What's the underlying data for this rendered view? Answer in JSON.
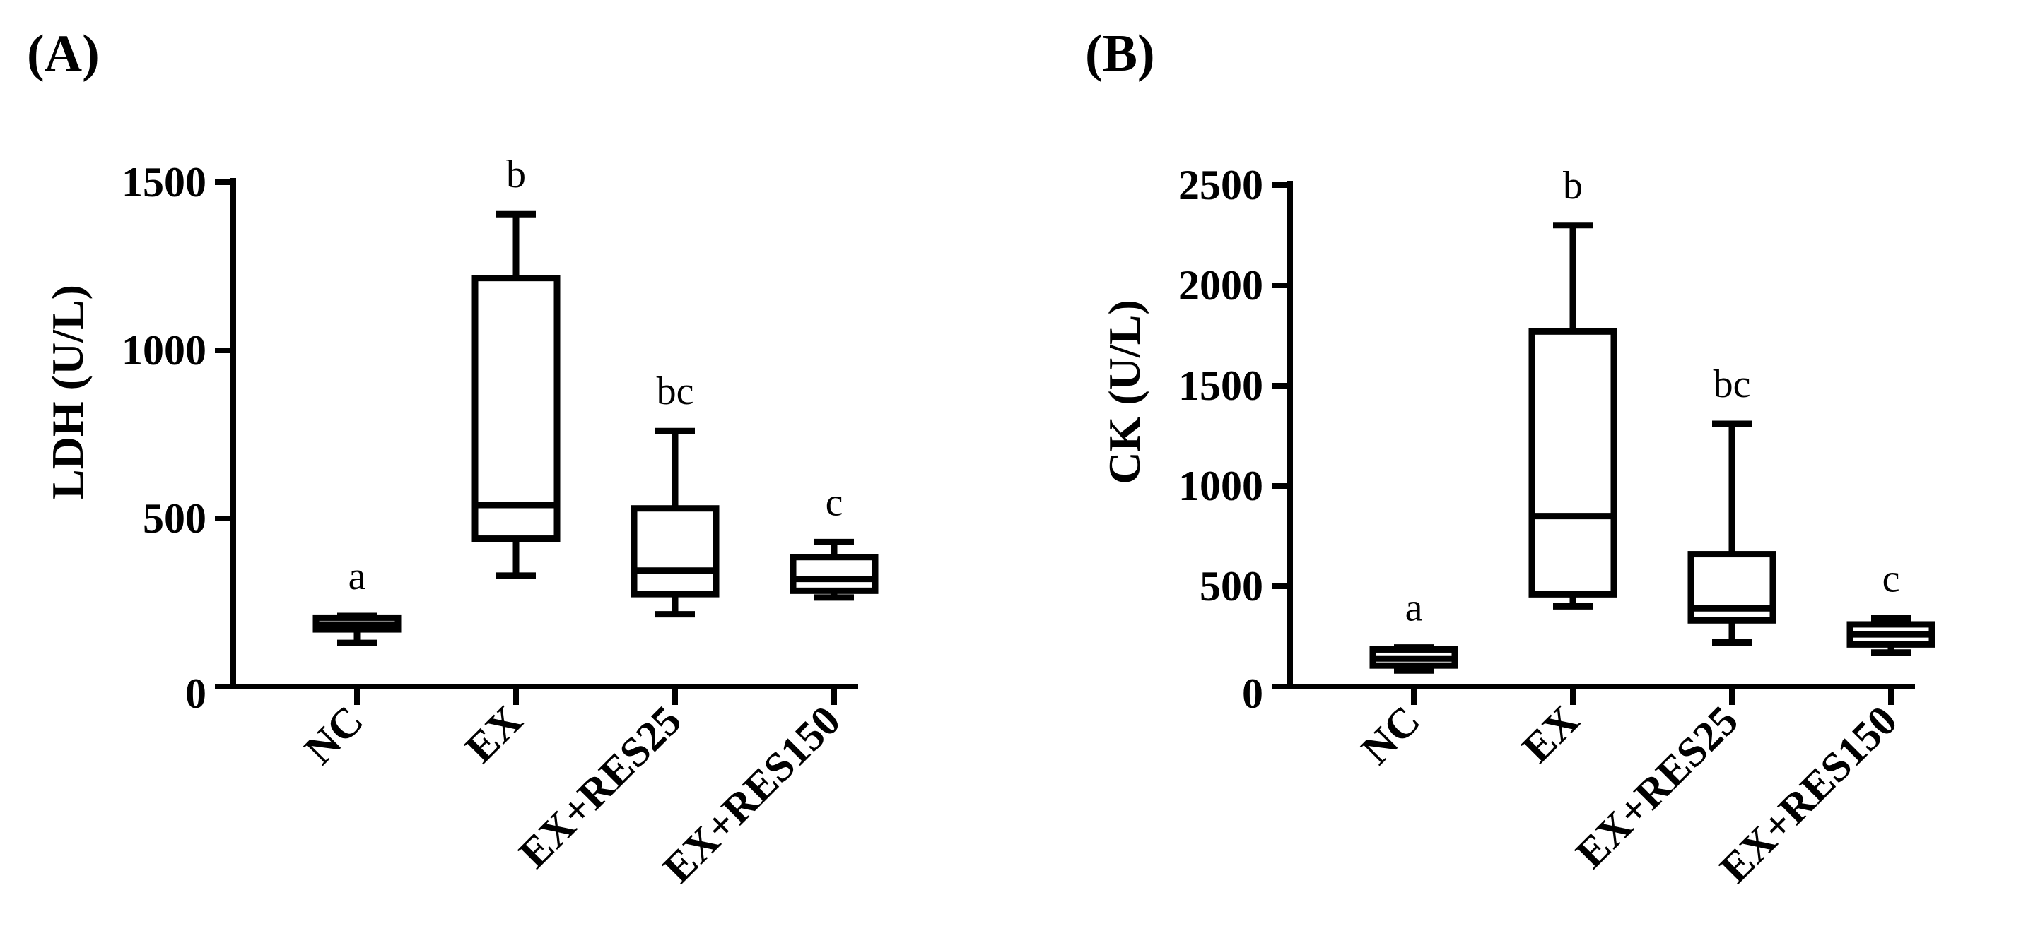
{
  "chart_data": [
    {
      "type": "box",
      "panel_label": "(A)",
      "ylabel": "LDH (U/L)",
      "ylim": [
        0,
        1500
      ],
      "yticks": [
        0,
        500,
        1000,
        1500
      ],
      "categories": [
        "NC",
        "EX",
        "EX+RES25",
        "EX+RES150"
      ],
      "boxes": [
        {
          "category": "NC",
          "min": 130,
          "q1": 170,
          "median": 185,
          "q3": 205,
          "max": 210,
          "sig": "a"
        },
        {
          "category": "EX",
          "min": 330,
          "q1": 440,
          "median": 540,
          "q3": 1215,
          "max": 1405,
          "sig": "b"
        },
        {
          "category": "EX+RES25",
          "min": 215,
          "q1": 275,
          "median": 345,
          "q3": 530,
          "max": 760,
          "sig": "bc"
        },
        {
          "category": "EX+RES150",
          "min": 265,
          "q1": 285,
          "median": 320,
          "q3": 385,
          "max": 430,
          "sig": "c"
        }
      ]
    },
    {
      "type": "box",
      "panel_label": "(B)",
      "ylabel": "CK (U/L)",
      "ylim": [
        0,
        2500
      ],
      "yticks": [
        0,
        500,
        1000,
        1500,
        2000,
        2500
      ],
      "categories": [
        "NC",
        "EX",
        "EX+RES25",
        "EX+RES150"
      ],
      "boxes": [
        {
          "category": "NC",
          "min": 80,
          "q1": 105,
          "median": 140,
          "q3": 185,
          "max": 195,
          "sig": "a"
        },
        {
          "category": "EX",
          "min": 400,
          "q1": 460,
          "median": 850,
          "q3": 1770,
          "max": 2300,
          "sig": "b"
        },
        {
          "category": "EX+RES25",
          "min": 220,
          "q1": 330,
          "median": 390,
          "q3": 660,
          "max": 1310,
          "sig": "bc"
        },
        {
          "category": "EX+RES150",
          "min": 170,
          "q1": 210,
          "median": 260,
          "q3": 310,
          "max": 340,
          "sig": "c"
        }
      ]
    }
  ]
}
